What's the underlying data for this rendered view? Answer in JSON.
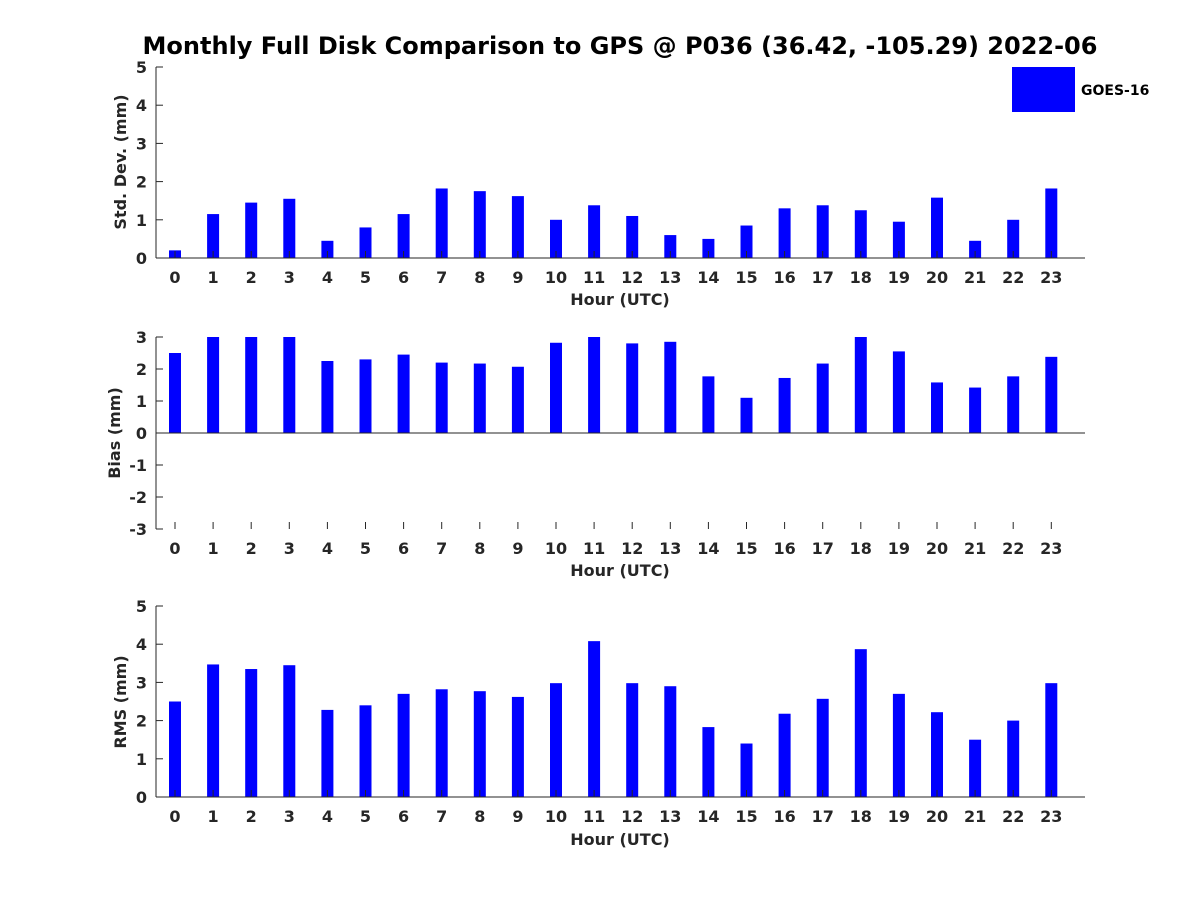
{
  "figure": {
    "title": "Monthly Full Disk Comparison to GPS @ P036 (36.42, -105.29) 2022-06"
  },
  "legend": {
    "label": "GOES-16",
    "color": "#0000ff",
    "placement": "top-right"
  },
  "chart_data": [
    {
      "type": "bar",
      "categories": [
        "0",
        "1",
        "2",
        "3",
        "4",
        "5",
        "6",
        "7",
        "8",
        "9",
        "10",
        "11",
        "12",
        "13",
        "14",
        "15",
        "16",
        "17",
        "18",
        "19",
        "20",
        "21",
        "22",
        "23"
      ],
      "series": [
        {
          "name": "GOES-16",
          "color": "#0000ff",
          "values": [
            0.2,
            1.15,
            1.45,
            1.55,
            0.45,
            0.8,
            1.15,
            1.82,
            1.75,
            1.62,
            1.0,
            1.38,
            1.1,
            0.6,
            0.5,
            0.85,
            1.3,
            1.38,
            1.25,
            0.95,
            1.58,
            0.45,
            1.0,
            1.82
          ]
        }
      ],
      "xlabel": "Hour (UTC)",
      "ylabel": "Std. Dev. (mm)",
      "ylim": [
        0,
        5
      ],
      "yticks": [
        0,
        1,
        2,
        3,
        4,
        5
      ],
      "grid": false
    },
    {
      "type": "bar",
      "categories": [
        "0",
        "1",
        "2",
        "3",
        "4",
        "5",
        "6",
        "7",
        "8",
        "9",
        "10",
        "11",
        "12",
        "13",
        "14",
        "15",
        "16",
        "17",
        "18",
        "19",
        "20",
        "21",
        "22",
        "23"
      ],
      "series": [
        {
          "name": "GOES-16",
          "color": "#0000ff",
          "values": [
            2.5,
            3.0,
            3.0,
            3.0,
            2.25,
            2.3,
            2.45,
            2.2,
            2.17,
            2.07,
            2.82,
            3.0,
            2.8,
            2.85,
            1.77,
            1.1,
            1.72,
            2.17,
            3.0,
            2.55,
            1.58,
            1.42,
            1.77,
            2.38
          ]
        }
      ],
      "xlabel": "Hour (UTC)",
      "ylabel": "Bias (mm)",
      "ylim": [
        -3,
        3
      ],
      "yticks": [
        -3,
        -2,
        -1,
        0,
        1,
        2,
        3
      ],
      "grid": false
    },
    {
      "type": "bar",
      "categories": [
        "0",
        "1",
        "2",
        "3",
        "4",
        "5",
        "6",
        "7",
        "8",
        "9",
        "10",
        "11",
        "12",
        "13",
        "14",
        "15",
        "16",
        "17",
        "18",
        "19",
        "20",
        "21",
        "22",
        "23"
      ],
      "series": [
        {
          "name": "GOES-16",
          "color": "#0000ff",
          "values": [
            2.5,
            3.47,
            3.35,
            3.45,
            2.28,
            2.4,
            2.7,
            2.82,
            2.77,
            2.62,
            2.98,
            4.08,
            2.98,
            2.9,
            1.83,
            1.4,
            2.18,
            2.57,
            3.87,
            2.7,
            2.22,
            1.5,
            2.0,
            2.98
          ]
        }
      ],
      "xlabel": "Hour (UTC)",
      "ylabel": "RMS (mm)",
      "ylim": [
        0,
        5
      ],
      "yticks": [
        0,
        1,
        2,
        3,
        4,
        5
      ],
      "grid": false
    }
  ]
}
